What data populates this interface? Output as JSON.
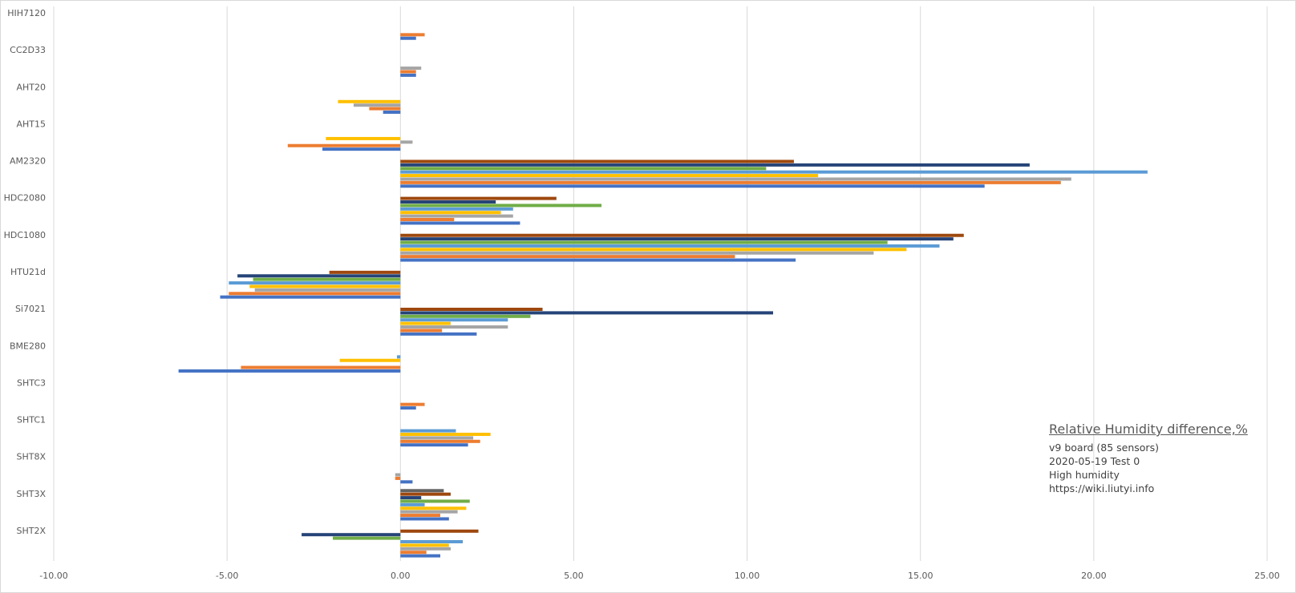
{
  "chart_data": {
    "type": "bar",
    "orientation": "horizontal",
    "xlim": [
      -10,
      25
    ],
    "x_ticks": [
      "-10.00",
      "-5.00",
      "0.00",
      "5.00",
      "10.00",
      "15.00",
      "20.00",
      "25.00"
    ],
    "grid": "vertical",
    "legend": "none",
    "categories": [
      "HIH7120",
      "CC2D33",
      "AHT20",
      "AHT15",
      "AM2320",
      "HDC2080",
      "HDC1080",
      "HTU21d",
      "Si7021",
      "BME280",
      "SHTC3",
      "SHTC1",
      "SHT8X",
      "SHT3X",
      "SHT2X"
    ],
    "series_colors": [
      "#4472c4",
      "#ed7d31",
      "#a5a5a5",
      "#ffc000",
      "#5b9bd5",
      "#70ad47",
      "#264478",
      "#9e480e",
      "#636363"
    ],
    "series": [
      {
        "values": [
          0.45,
          0.45,
          -0.5,
          -2.25,
          16.85,
          3.45,
          11.4,
          -5.2,
          2.2,
          -6.4,
          0.45,
          1.95,
          0.35,
          1.4,
          1.15
        ]
      },
      {
        "values": [
          0.7,
          0.45,
          -0.9,
          -3.25,
          19.05,
          1.55,
          9.65,
          -4.95,
          1.2,
          -4.6,
          0.7,
          2.3,
          -0.15,
          1.15,
          0.75
        ]
      },
      {
        "values": [
          null,
          0.6,
          -1.35,
          0.35,
          19.35,
          3.25,
          13.65,
          -4.2,
          3.1,
          null,
          null,
          2.1,
          -0.15,
          1.65,
          1.45
        ]
      },
      {
        "values": [
          null,
          null,
          -1.8,
          -2.15,
          12.05,
          2.9,
          14.6,
          -4.35,
          1.45,
          -1.75,
          null,
          2.6,
          null,
          1.9,
          1.4
        ]
      },
      {
        "values": [
          null,
          null,
          null,
          null,
          21.55,
          3.25,
          15.55,
          -4.95,
          3.1,
          -0.1,
          null,
          1.6,
          null,
          0.7,
          1.8
        ]
      },
      {
        "values": [
          null,
          null,
          null,
          null,
          10.55,
          5.8,
          14.05,
          -4.25,
          3.75,
          null,
          null,
          null,
          null,
          2.0,
          -1.95
        ]
      },
      {
        "values": [
          null,
          null,
          null,
          null,
          18.15,
          2.75,
          15.95,
          -4.7,
          10.75,
          null,
          null,
          null,
          null,
          0.6,
          -2.85
        ]
      },
      {
        "values": [
          null,
          null,
          null,
          null,
          11.35,
          4.5,
          16.25,
          -2.05,
          4.1,
          null,
          null,
          null,
          null,
          1.45,
          2.25
        ]
      },
      {
        "values": [
          null,
          null,
          null,
          null,
          null,
          null,
          null,
          null,
          null,
          null,
          null,
          null,
          null,
          1.25,
          null
        ]
      }
    ]
  },
  "annotation": {
    "title": "Relative Humidity difference,%",
    "lines": [
      "v9 board (85 sensors)",
      "2020-05-19  Test 0",
      "High humidity",
      "https://wiki.liutyi.info"
    ]
  }
}
